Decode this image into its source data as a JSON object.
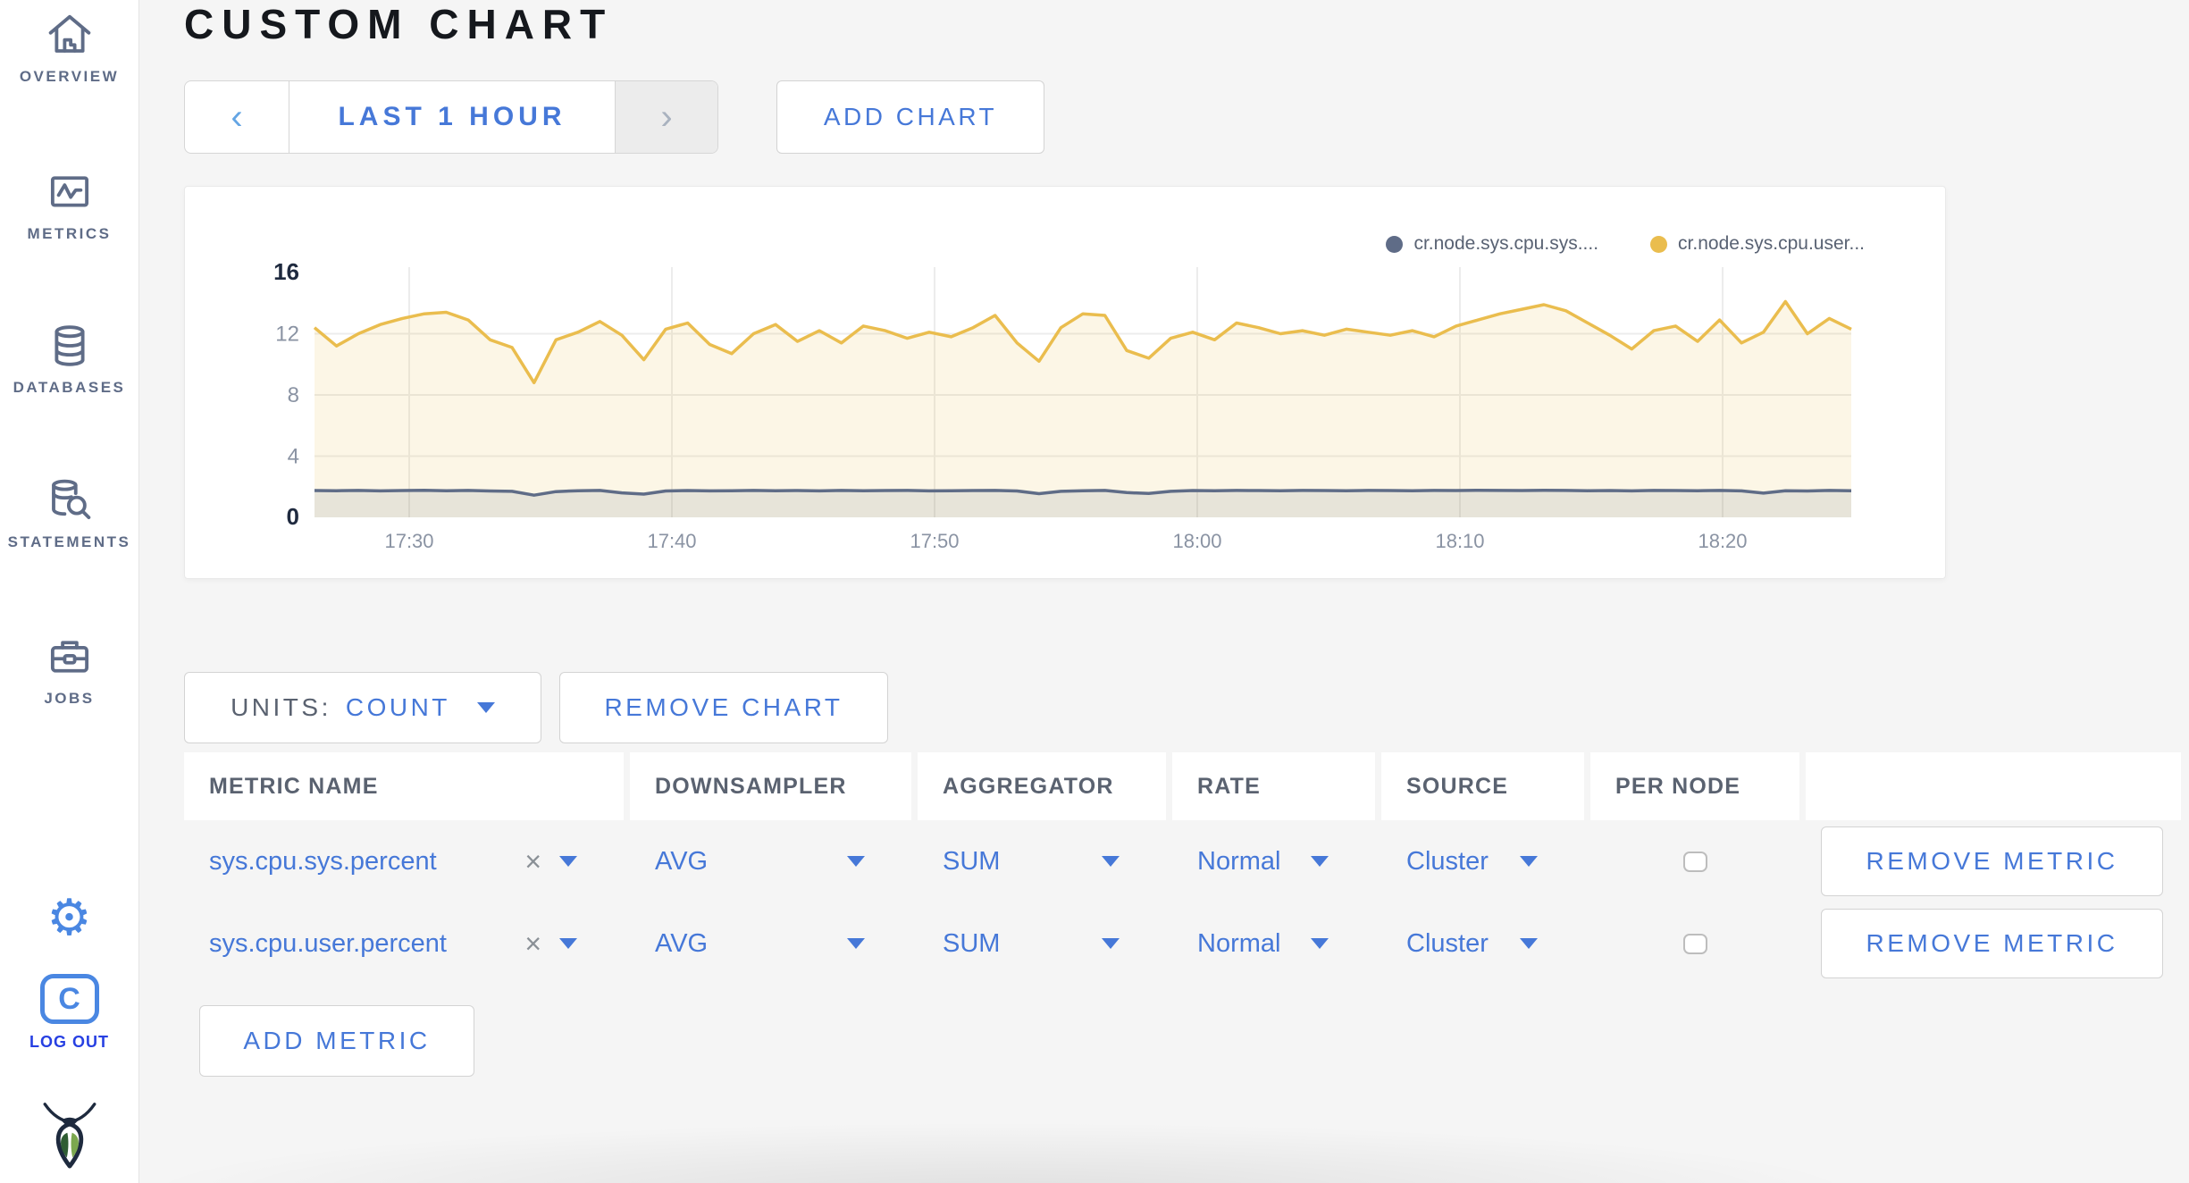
{
  "sidebar": {
    "items": [
      {
        "icon": "home-icon",
        "label": "OVERVIEW"
      },
      {
        "icon": "metrics-graph-icon",
        "label": "METRICS"
      },
      {
        "icon": "database-icon",
        "label": "DATABASES"
      },
      {
        "icon": "statements-search-icon",
        "label": "STATEMENTS"
      },
      {
        "icon": "briefcase-icon",
        "label": "JOBS"
      }
    ],
    "settings_glyph": "⚙",
    "logout": {
      "letter": "C",
      "label": "LOG OUT"
    }
  },
  "header": {
    "title": "CUSTOM CHART"
  },
  "toolbar": {
    "prev_label": "‹",
    "time_range": "LAST 1 HOUR",
    "next_label": "›",
    "add_chart": "ADD CHART"
  },
  "chart_data": {
    "type": "line",
    "x_ticks": [
      "17:30",
      "17:40",
      "17:50",
      "18:00",
      "18:10",
      "18:20"
    ],
    "y_ticks": [
      0,
      4,
      8,
      12,
      16
    ],
    "ylim": [
      0,
      16
    ],
    "grid": true,
    "legend_position": "top-right",
    "series": [
      {
        "name": "cr.node.sys.cpu.sys....",
        "color": "#5F6C87",
        "fill": "rgba(95,108,135,0.13)",
        "values": [
          1.75,
          1.74,
          1.76,
          1.73,
          1.75,
          1.77,
          1.74,
          1.76,
          1.72,
          1.7,
          1.45,
          1.68,
          1.74,
          1.76,
          1.6,
          1.52,
          1.72,
          1.75,
          1.73,
          1.74,
          1.76,
          1.74,
          1.75,
          1.73,
          1.76,
          1.74,
          1.75,
          1.76,
          1.73,
          1.74,
          1.75,
          1.76,
          1.72,
          1.55,
          1.7,
          1.74,
          1.76,
          1.62,
          1.56,
          1.7,
          1.75,
          1.74,
          1.76,
          1.75,
          1.74,
          1.76,
          1.75,
          1.74,
          1.76,
          1.75,
          1.74,
          1.76,
          1.75,
          1.77,
          1.76,
          1.75,
          1.77,
          1.76,
          1.74,
          1.75,
          1.73,
          1.76,
          1.75,
          1.74,
          1.76,
          1.73,
          1.58,
          1.74,
          1.72,
          1.76,
          1.74
        ]
      },
      {
        "name": "cr.node.sys.cpu.user...",
        "color": "#EABD4E",
        "fill": "rgba(234,189,78,0.14)",
        "values": [
          12.4,
          11.2,
          12.0,
          12.6,
          13.0,
          13.3,
          13.4,
          12.9,
          11.6,
          11.1,
          8.8,
          11.6,
          12.1,
          12.8,
          11.9,
          10.3,
          12.3,
          12.7,
          11.3,
          10.7,
          12.0,
          12.6,
          11.5,
          12.2,
          11.4,
          12.5,
          12.2,
          11.7,
          12.1,
          11.8,
          12.4,
          13.2,
          11.4,
          10.2,
          12.4,
          13.3,
          13.2,
          10.9,
          10.4,
          11.7,
          12.1,
          11.6,
          12.7,
          12.4,
          12.0,
          12.2,
          11.9,
          12.3,
          12.1,
          11.9,
          12.2,
          11.8,
          12.5,
          12.9,
          13.3,
          13.6,
          13.9,
          13.5,
          12.7,
          11.9,
          11.0,
          12.2,
          12.5,
          11.5,
          12.9,
          11.4,
          12.1,
          14.1,
          12.0,
          13.0,
          12.3
        ]
      }
    ]
  },
  "chart_controls": {
    "units_label": "UNITS:",
    "units_value": "COUNT",
    "remove_chart": "REMOVE CHART"
  },
  "metrics_table": {
    "headers": [
      "METRIC NAME",
      "DOWNSAMPLER",
      "AGGREGATOR",
      "RATE",
      "SOURCE",
      "PER NODE"
    ],
    "clear_icon": "×",
    "remove_metric_label": "REMOVE METRIC",
    "add_metric": "ADD METRIC",
    "rows": [
      {
        "name": "sys.cpu.sys.percent",
        "downsampler": "AVG",
        "aggregator": "SUM",
        "rate": "Normal",
        "source": "Cluster",
        "per_node_checked": false
      },
      {
        "name": "sys.cpu.user.percent",
        "downsampler": "AVG",
        "aggregator": "SUM",
        "rate": "Normal",
        "source": "Cluster",
        "per_node_checked": false
      }
    ]
  },
  "colors": {
    "accent_blue": "#4678D8",
    "slate": "#5F6C87",
    "series_yellow": "#EABD4E",
    "logout_blue": "#2740E2",
    "background": "#F5F5F5"
  }
}
